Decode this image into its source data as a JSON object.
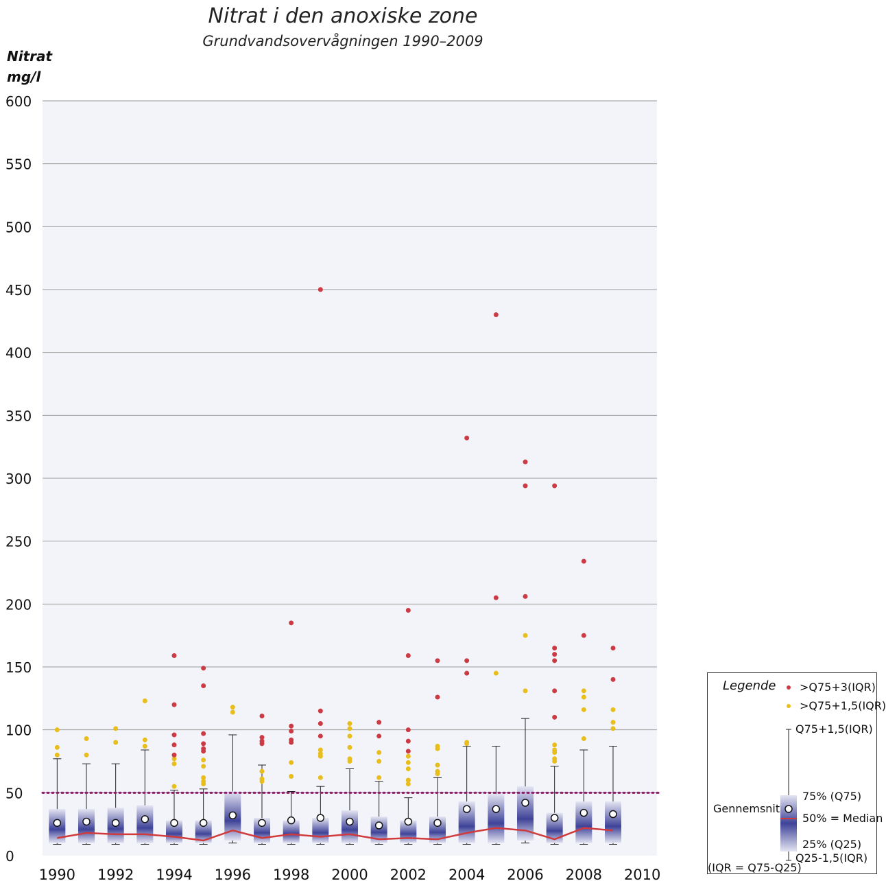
{
  "chart_data": {
    "type": "box",
    "title": "Nitrat i den anoxiske zone",
    "subtitle": "Grundvandsovervågningen 1990–2009",
    "ylabel_line1": "Nitrat",
    "ylabel_line2": "mg/l",
    "ylim": [
      0,
      600
    ],
    "yticks": [
      0,
      50,
      100,
      150,
      200,
      250,
      300,
      350,
      400,
      450,
      500,
      550,
      600
    ],
    "xlim": [
      1989.5,
      2010.5
    ],
    "xticks": [
      1990,
      1992,
      1994,
      1996,
      1998,
      2000,
      2002,
      2004,
      2006,
      2008,
      2010
    ],
    "grid": true,
    "reference_line": {
      "value": 50
    },
    "colors": {
      "plot_bg": "#f3f4f9",
      "grid": "#9a9a9a",
      "extreme": "#cc3a44",
      "outlier": "#e8be1c",
      "median": "#d03a3c",
      "reference": "#8b1f6a",
      "box": "#3f4398"
    },
    "years": [
      {
        "year": 1990,
        "q25": 10,
        "q75": 37,
        "median": 14,
        "mean": 26,
        "whisker_low": 9,
        "whisker_high": 77,
        "outliers": [
          80,
          86,
          100
        ],
        "extremes": []
      },
      {
        "year": 1991,
        "q25": 10,
        "q75": 37,
        "median": 18,
        "mean": 27,
        "whisker_low": 9,
        "whisker_high": 73,
        "outliers": [
          80,
          93
        ],
        "extremes": []
      },
      {
        "year": 1992,
        "q25": 10,
        "q75": 38,
        "median": 17,
        "mean": 26,
        "whisker_low": 9,
        "whisker_high": 73,
        "outliers": [
          90,
          101
        ],
        "extremes": []
      },
      {
        "year": 1993,
        "q25": 10,
        "q75": 40,
        "median": 17,
        "mean": 29,
        "whisker_low": 9,
        "whisker_high": 84,
        "outliers": [
          87,
          92,
          123
        ],
        "extremes": []
      },
      {
        "year": 1994,
        "q25": 10,
        "q75": 28,
        "median": 15,
        "mean": 26,
        "whisker_low": 9,
        "whisker_high": 52,
        "outliers": [
          55,
          73,
          77
        ],
        "extremes": [
          80,
          88,
          96,
          120,
          159
        ]
      },
      {
        "year": 1995,
        "q25": 10,
        "q75": 28,
        "median": 12,
        "mean": 26,
        "whisker_low": 9,
        "whisker_high": 53,
        "outliers": [
          57,
          59,
          62,
          71,
          76
        ],
        "extremes": [
          83,
          85,
          89,
          97,
          135,
          149
        ]
      },
      {
        "year": 1996,
        "q25": 12,
        "q75": 51,
        "median": 20,
        "mean": 32,
        "whisker_low": 10,
        "whisker_high": 96,
        "outliers": [
          114,
          118
        ],
        "extremes": []
      },
      {
        "year": 1997,
        "q25": 10,
        "q75": 30,
        "median": 14,
        "mean": 26,
        "whisker_low": 9,
        "whisker_high": 72,
        "outliers": [
          59,
          61,
          67
        ],
        "extremes": [
          89,
          91,
          94,
          111
        ]
      },
      {
        "year": 1998,
        "q25": 10,
        "q75": 28,
        "median": 17,
        "mean": 28,
        "whisker_low": 9,
        "whisker_high": 51,
        "outliers": [
          63,
          74
        ],
        "extremes": [
          90,
          92,
          99,
          103,
          185
        ]
      },
      {
        "year": 1999,
        "q25": 10,
        "q75": 30,
        "median": 15,
        "mean": 30,
        "whisker_low": 9,
        "whisker_high": 55,
        "outliers": [
          62,
          79,
          81,
          84
        ],
        "extremes": [
          95,
          105,
          115,
          450
        ]
      },
      {
        "year": 2000,
        "q25": 10,
        "q75": 36,
        "median": 17,
        "mean": 27,
        "whisker_low": 9,
        "whisker_high": 69,
        "outliers": [
          75,
          77,
          86,
          95,
          101,
          105
        ],
        "extremes": []
      },
      {
        "year": 2001,
        "q25": 10,
        "q75": 31,
        "median": 13,
        "mean": 24,
        "whisker_low": 9,
        "whisker_high": 59,
        "outliers": [
          62,
          75,
          82
        ],
        "extremes": [
          95,
          106
        ]
      },
      {
        "year": 2002,
        "q25": 10,
        "q75": 28,
        "median": 14,
        "mean": 27,
        "whisker_low": 9,
        "whisker_high": 46,
        "outliers": [
          57,
          60,
          69,
          74,
          79
        ],
        "extremes": [
          83,
          91,
          100,
          159,
          195
        ]
      },
      {
        "year": 2003,
        "q25": 10,
        "q75": 31,
        "median": 13,
        "mean": 26,
        "whisker_low": 9,
        "whisker_high": 62,
        "outliers": [
          65,
          67,
          72,
          85,
          87
        ],
        "extremes": [
          126,
          155
        ]
      },
      {
        "year": 2004,
        "q25": 10,
        "q75": 43,
        "median": 18,
        "mean": 37,
        "whisker_low": 9,
        "whisker_high": 87,
        "outliers": [
          89,
          90
        ],
        "extremes": [
          145,
          155,
          332
        ]
      },
      {
        "year": 2005,
        "q25": 10,
        "q75": 49,
        "median": 22,
        "mean": 37,
        "whisker_low": 9,
        "whisker_high": 87,
        "outliers": [
          145
        ],
        "extremes": [
          205,
          430
        ]
      },
      {
        "year": 2006,
        "q25": 12,
        "q75": 55,
        "median": 20,
        "mean": 42,
        "whisker_low": 10,
        "whisker_high": 109,
        "outliers": [
          131,
          175
        ],
        "extremes": [
          206,
          294,
          313
        ]
      },
      {
        "year": 2007,
        "q25": 10,
        "q75": 34,
        "median": 13,
        "mean": 30,
        "whisker_low": 9,
        "whisker_high": 71,
        "outliers": [
          75,
          77,
          82,
          84,
          88
        ],
        "extremes": [
          110,
          131,
          155,
          160,
          165,
          294
        ]
      },
      {
        "year": 2008,
        "q25": 10,
        "q75": 43,
        "median": 22,
        "mean": 34,
        "whisker_low": 9,
        "whisker_high": 84,
        "outliers": [
          93,
          116,
          126,
          131
        ],
        "extremes": [
          175,
          234
        ]
      },
      {
        "year": 2009,
        "q25": 10,
        "q75": 43,
        "median": 20,
        "mean": 33,
        "whisker_low": 9,
        "whisker_high": 87,
        "outliers": [
          101,
          106,
          116
        ],
        "extremes": [
          140,
          165
        ]
      }
    ]
  },
  "legend": {
    "title": "Legende",
    "extreme_label": ">Q75+3(IQR)",
    "outlier_label": ">Q75+1,5(IQR)",
    "whisker_high_label": "Q75+1,5(IQR)",
    "q75_label": "75% (Q75)",
    "mean_label": "Gennemsnit",
    "median_label": "50% = Median",
    "q25_label": "25% (Q25)",
    "whisker_low_label": "Q25-1,5(IQR)",
    "iqr_note": "(IQR = Q75-Q25)"
  }
}
